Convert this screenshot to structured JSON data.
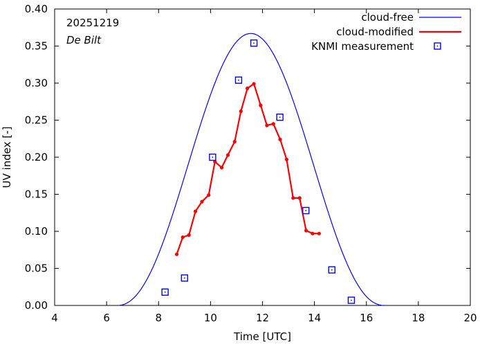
{
  "chart_data": {
    "type": "line",
    "date_label": "20251219",
    "location": "De Bilt",
    "xlabel": "Time  [UTC]",
    "ylabel": "UV index  [-]",
    "xlim": [
      4,
      20
    ],
    "ylim": [
      0,
      0.4
    ],
    "xticks": [
      4,
      6,
      8,
      10,
      12,
      14,
      16,
      18,
      20
    ],
    "yticks": [
      0.0,
      0.05,
      0.1,
      0.15,
      0.2,
      0.25,
      0.3,
      0.35,
      0.4
    ],
    "ytick_labels": [
      "0.00",
      "0.05",
      "0.10",
      "0.15",
      "0.20",
      "0.25",
      "0.30",
      "0.35",
      "0.40"
    ],
    "legend_position": "top-right",
    "series": [
      {
        "name": "cloud-free",
        "style": "line",
        "color": "#0000ff",
        "model": "cos-power",
        "start": 6.5,
        "end": 16.7,
        "peak_time": 11.55,
        "peak_value": 0.367,
        "exponent": 2.2
      },
      {
        "name": "cloud-modified",
        "style": "line-points",
        "color": "#ff0000",
        "x": [
          8.7,
          8.93,
          9.17,
          9.42,
          9.67,
          9.93,
          10.17,
          10.43,
          10.67,
          10.93,
          11.17,
          11.42,
          11.67,
          11.93,
          12.17,
          12.42,
          12.68,
          12.93,
          13.18,
          13.43,
          13.68,
          13.93,
          14.18
        ],
        "y": [
          0.069,
          0.092,
          0.095,
          0.127,
          0.14,
          0.149,
          0.194,
          0.186,
          0.203,
          0.221,
          0.262,
          0.293,
          0.299,
          0.27,
          0.243,
          0.245,
          0.224,
          0.197,
          0.145,
          0.145,
          0.101,
          0.097,
          0.097
        ]
      },
      {
        "name": "KNMI measurement",
        "style": "squares",
        "color": "#0000ff",
        "x": [
          8.25,
          9.0,
          10.08,
          11.08,
          11.67,
          12.67,
          13.67,
          14.67,
          15.42
        ],
        "y": [
          0.018,
          0.037,
          0.2,
          0.304,
          0.354,
          0.254,
          0.128,
          0.048,
          0.007
        ]
      }
    ]
  }
}
